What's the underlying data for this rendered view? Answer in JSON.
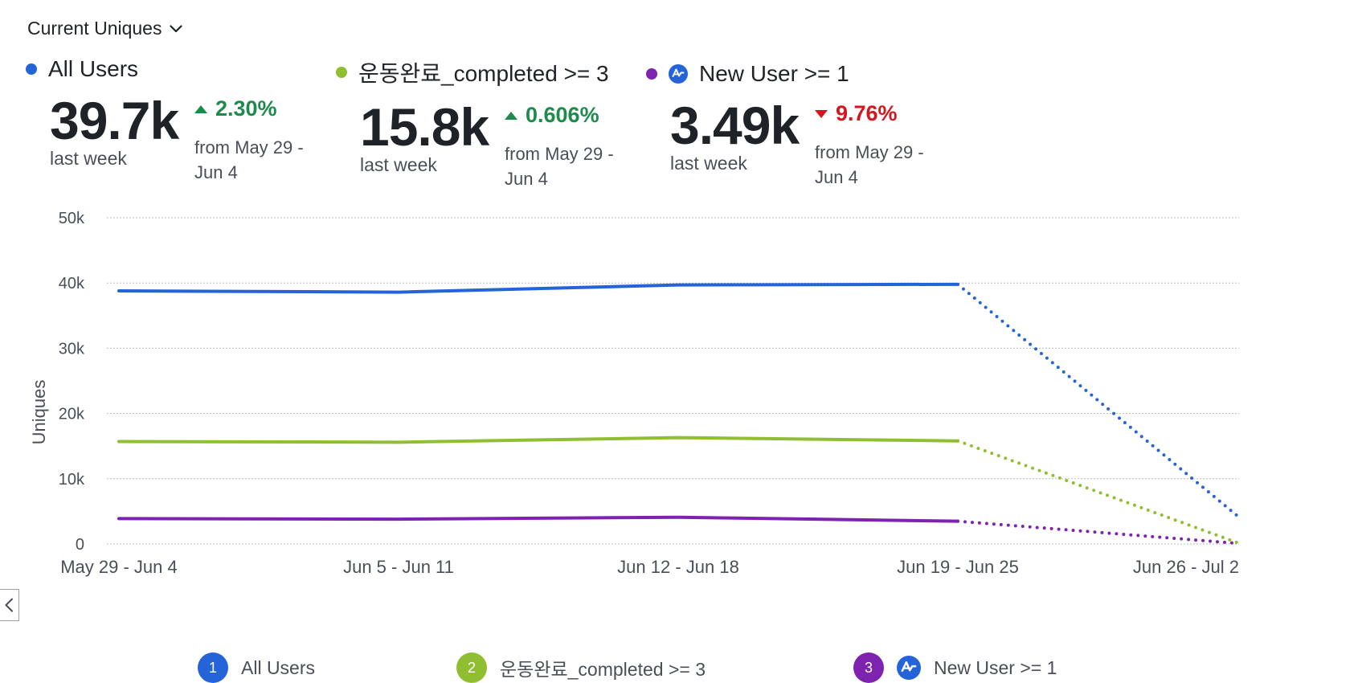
{
  "header": {
    "metric_label": "Current Uniques"
  },
  "kpis": [
    {
      "name": "All Users",
      "color": "#2563d9",
      "has_event_icon": false,
      "value": "39.7k",
      "period": "last week",
      "change": "2.30%",
      "direction": "up",
      "from": "from May 29 - Jun 4"
    },
    {
      "name": "운동완료_completed >= 3",
      "color": "#8fbf30",
      "has_event_icon": false,
      "value": "15.8k",
      "period": "last week",
      "change": "0.606%",
      "direction": "up",
      "from": "from May 29 - Jun 4"
    },
    {
      "name": "New User >= 1",
      "color": "#7e22b0",
      "has_event_icon": true,
      "value": "3.49k",
      "period": "last week",
      "change": "9.76%",
      "direction": "down",
      "from": "from May 29 - Jun 4"
    }
  ],
  "chart_data": {
    "type": "line",
    "ylabel": "Uniques",
    "xlabel": "",
    "ylim": [
      0,
      50000
    ],
    "yticks": [
      0,
      10000,
      20000,
      30000,
      40000,
      50000
    ],
    "ytick_labels": [
      "0",
      "10k",
      "20k",
      "30k",
      "40k",
      "50k"
    ],
    "categories": [
      "May 29 - Jun 4",
      "Jun 5 - Jun 11",
      "Jun 12 - Jun 18",
      "Jun 19 - Jun 25",
      "Jun 26 - Jul 2"
    ],
    "incomplete_from_index": 3,
    "grid": true,
    "legend_position": "bottom",
    "series": [
      {
        "name": "All Users",
        "badge": "1",
        "color": "#2563d9",
        "has_event_icon": false,
        "values": [
          38800,
          38600,
          39700,
          39800,
          4300
        ]
      },
      {
        "name": "운동완료_completed >= 3",
        "badge": "2",
        "color": "#8fbf30",
        "has_event_icon": false,
        "values": [
          15700,
          15600,
          16300,
          15800,
          200
        ]
      },
      {
        "name": "New User >= 1",
        "badge": "3",
        "color": "#7e22b0",
        "has_event_icon": true,
        "values": [
          3900,
          3800,
          4100,
          3490,
          100
        ]
      }
    ]
  },
  "icons": {
    "metric_dropdown": "chevron-down-icon",
    "event": "event-segment-icon",
    "collapse": "chevron-left-icon"
  }
}
